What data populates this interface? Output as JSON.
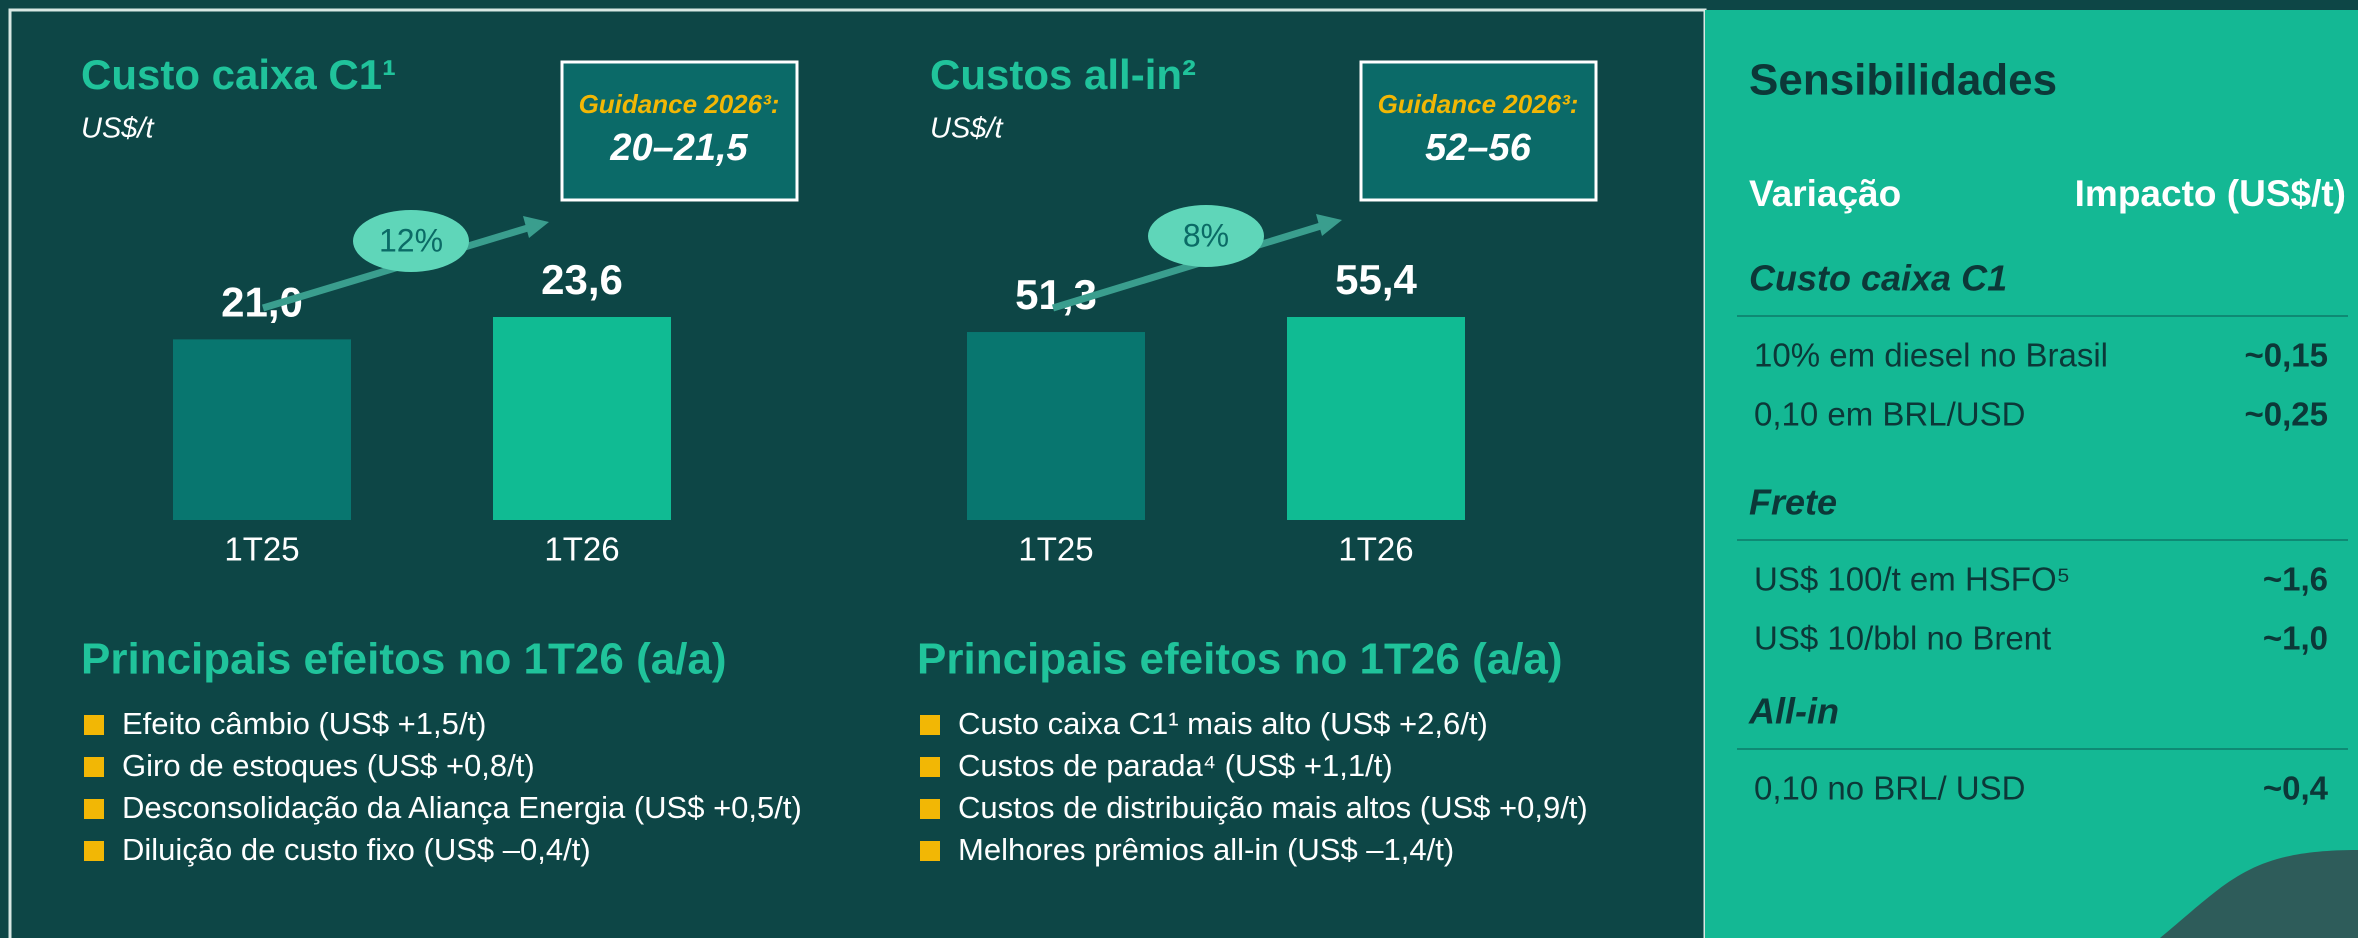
{
  "chart_data": [
    {
      "type": "bar",
      "title": "Custo caixa C1¹",
      "subtitle": "US$/t",
      "categories": [
        "1T25",
        "1T26"
      ],
      "values": [
        21.0,
        23.6
      ],
      "value_labels": [
        "21,0",
        "23,6"
      ],
      "colors": [
        "#08766f",
        "#10bb93"
      ],
      "growth_label": "12%",
      "guidance_title": "Guidance 2026³:",
      "guidance_value": "20–21,5"
    },
    {
      "type": "bar",
      "title": "Custos all-in²",
      "subtitle": "US$/t",
      "categories": [
        "1T25",
        "1T26"
      ],
      "values": [
        51.3,
        55.4
      ],
      "value_labels": [
        "51,3",
        "55,4"
      ],
      "colors": [
        "#08766f",
        "#10bb93"
      ],
      "growth_label": "8%",
      "guidance_title": "Guidance 2026³:",
      "guidance_value": "52–56"
    }
  ],
  "effects": [
    {
      "title": "Principais efeitos no 1T26 (a/a)",
      "items": [
        "Efeito câmbio (US$ +1,5/t)",
        "Giro de estoques (US$ +0,8/t)",
        "Desconsolidação da Aliança Energia (US$ +0,5/t)",
        "Diluição de custo fixo (US$ –0,4/t)"
      ]
    },
    {
      "title": "Principais efeitos no 1T26 (a/a)",
      "items": [
        "Custo caixa C1¹ mais alto (US$ +2,6/t)",
        "Custos de parada⁴ (US$ +1,1/t)",
        "Custos de distribuição mais altos (US$ +0,9/t)",
        "Melhores prêmios all-in (US$ –1,4/t)"
      ]
    }
  ],
  "sensitivities": {
    "title": "Sensibilidades",
    "headers": [
      "Variação",
      "Impacto (US$/t)"
    ],
    "sections": [
      {
        "title": "Custo caixa C1",
        "rows": [
          [
            "10% em diesel no Brasil",
            "~0,15"
          ],
          [
            "0,10 em BRL/USD",
            "~0,25"
          ]
        ]
      },
      {
        "title": "Frete",
        "rows": [
          [
            "US$ 100/t em HSFO⁵",
            "~1,6"
          ],
          [
            "US$ 10/bbl no Brent",
            "~1,0"
          ]
        ]
      },
      {
        "title": "All-in",
        "rows": [
          [
            "0,10 no BRL/ USD",
            "~0,4"
          ]
        ]
      }
    ]
  }
}
